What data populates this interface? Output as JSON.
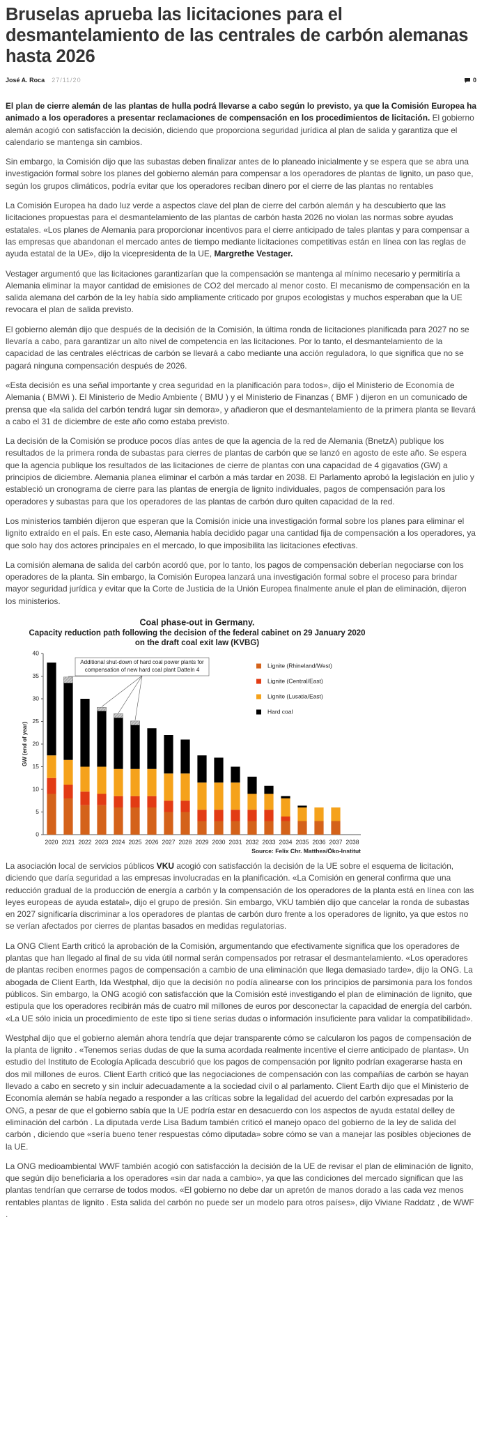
{
  "header": {
    "title": "Bruselas aprueba las licitaciones para el desmantelamiento de las centrales de carbón alemanas hasta 2026",
    "author": "José A. Roca",
    "date": "27/11/20",
    "comments": "0"
  },
  "article": {
    "paragraphs": [
      [
        {
          "text": "El plan de cierre alemán de las plantas de hulla podrá llevarse a cabo según lo previsto, ya que la Comisión Europea ha animado a los operadores a presentar reclamaciones de compensación en los procedimientos de licitación.",
          "bold": true
        },
        {
          "text": " El gobierno alemán acogió con satisfacción la decisión, diciendo que proporciona seguridad jurídica al plan de salida y garantiza que el calendario se mantenga sin cambios."
        }
      ],
      [
        {
          "text": "Sin embargo, la Comisión dijo que las subastas deben finalizar antes de lo planeado inicialmente y se espera que se abra una investigación formal sobre los planes del gobierno alemán para compensar a los operadores de plantas de lignito, un paso que, según los grupos climáticos, podría evitar que los operadores reciban dinero por el cierre de las plantas no rentables"
        }
      ],
      [
        {
          "text": "La Comisión Europea ha dado luz verde a aspectos clave del plan de cierre del carbón alemán y ha descubierto que las licitaciones propuestas para el desmantelamiento de las plantas de carbón hasta 2026 no violan las normas sobre ayudas estatales. «Los planes de Alemania para proporcionar incentivos para el cierre anticipado de tales plantas y para compensar a las empresas que abandonan el mercado antes de tiempo mediante licitaciones competitivas están en línea con las reglas de ayuda estatal de la UE», dijo la vicepresidenta de la UE, "
        },
        {
          "text": "Margrethe Vestager.",
          "bold": true
        }
      ],
      [
        {
          "text": "Vestager argumentó que las licitaciones garantizarían que la compensación se mantenga al mínimo necesario y permitiría a Alemania eliminar la mayor cantidad de emisiones de CO2 del mercado al menor costo. El mecanismo de compensación en la salida alemana del carbón de la ley había sido ampliamente criticado por grupos ecologistas y muchos esperaban que la UE revocara el plan de salida previsto."
        }
      ],
      [
        {
          "text": "El gobierno alemán dijo que después de la decisión de la Comisión, la última ronda de licitaciones planificada para 2027 no se llevaría a cabo, para garantizar un alto nivel de competencia en las licitaciones. Por lo tanto, el desmantelamiento de la capacidad de las centrales eléctricas de carbón se llevará a cabo mediante una acción reguladora, lo que significa que no se pagará ninguna compensación después de 2026."
        }
      ],
      [
        {
          "text": "«Esta decisión es una señal importante y crea seguridad en la planificación para todos», dijo el Ministerio de Economía de Alemania ( BMWi ). El Ministerio de Medio Ambiente ( BMU ) y el Ministerio de Finanzas ( BMF ) dijeron en un comunicado de prensa que «la salida del carbón tendrá lugar sin demora», y añadieron que el desmantelamiento de la primera planta se llevará a cabo el 31 de diciembre de este año como estaba previsto."
        }
      ],
      [
        {
          "text": "La decisión de la Comisión se produce pocos días antes de que la agencia de la red de Alemania (BnetzA) publique los resultados de la primera ronda de subastas para cierres de plantas de carbón que se lanzó en agosto de este año. Se espera que la agencia publique los resultados de las licitaciones de cierre de plantas con una capacidad de 4 gigavatios (GW) a principios de diciembre. Alemania planea eliminar el carbón a más tardar en 2038. El Parlamento aprobó la legislación en julio y estableció un cronograma de cierre para las plantas de energía de lignito individuales, pagos de compensación para los operadores y subastas para que los operadores de las plantas de carbón duro quiten capacidad de la red."
        }
      ],
      [
        {
          "text": "Los ministerios también dijeron que esperan que la Comisión inicie una investigación formal sobre los planes para eliminar el lignito extraído en el país. En este caso, Alemania había decidido pagar una cantidad fija de compensación a los operadores, ya que solo hay dos actores principales en el mercado, lo que imposibilita las licitaciones efectivas."
        }
      ],
      [
        {
          "text": "La comisión alemana de salida del carbón acordó que, por lo tanto, los pagos de compensación deberían negociarse con los operadores de la planta. Sin embargo, la Comisión Europea lanzará una investigación formal sobre el proceso para brindar mayor seguridad jurídica y evitar que la Corte de Justicia de la Unión Europea finalmente anule el plan de eliminación, dijeron los ministerios."
        }
      ],
      [
        {
          "text": "La asociación local de servicios públicos "
        },
        {
          "text": "VKU",
          "bold": true
        },
        {
          "text": " acogió con satisfacción la decisión de la UE sobre el esquema de licitación, diciendo que daría seguridad a las empresas involucradas en la planificación. «La Comisión en general confirma que una reducción gradual de la producción de energía a carbón y la compensación de los operadores de la planta está en línea con las leyes europeas de ayuda estatal», dijo el grupo de presión. Sin embargo, VKU también dijo que cancelar la ronda de subastas en 2027 significaría discriminar a los operadores de plantas de carbón duro frente a los operadores de lignito, ya que estos no se verían afectados por cierres de plantas basados en medidas regulatorias."
        }
      ],
      [
        {
          "text": "La ONG Client Earth criticó la aprobación de la Comisión, argumentando que efectivamente significa que los operadores de plantas que han llegado al final de su vida útil normal serán compensados por retrasar el desmantelamiento. «Los operadores de plantas reciben enormes pagos de compensación a cambio de una eliminación que llega demasiado tarde», dijo la ONG. La abogada de Client Earth, Ida Westphal, dijo que la decisión no podía alinearse con los principios de parsimonia para los fondos públicos. Sin embargo, la ONG acogió con satisfacción que la Comisión esté investigando el plan de eliminación de lignito, que estipula que los operadores recibirán más de cuatro mil millones de euros por desconectar la capacidad de energía del carbón. «La UE sólo inicia un procedimiento de este tipo si tiene serias dudas o información insuficiente para validar la compatibilidad»."
        }
      ],
      [
        {
          "text": "Westphal dijo que el gobierno alemán ahora tendría que dejar transparente cómo se calcularon los pagos de compensación de la planta de lignito . «Tenemos serias dudas de que la suma acordada realmente incentive el cierre anticipado de plantas». Un estudio del Instituto de Ecología Aplicada descubrió que los pagos de compensación por lignito podrían exagerarse hasta en dos mil millones de euros. Client Earth criticó que las negociaciones de compensación con las compañías de carbón se hayan llevado a cabo en secreto y sin incluir adecuadamente a la sociedad civil o al parlamento. Client Earth dijo que el Ministerio de Economía alemán se había negado a responder a las críticas sobre la legalidad del acuerdo del carbón expresadas por la ONG, a pesar de que el gobierno sabía que la UE podría estar en desacuerdo con los aspectos de ayuda estatal delley de eliminación del carbón . La diputada verde Lisa Badum también criticó el manejo opaco del gobierno de la ley de salida del carbón , diciendo que «sería bueno tener respuestas cómo diputada» sobre cómo se van a manejar las posibles objeciones de la UE."
        }
      ],
      [
        {
          "text": "La ONG medioambiental WWF también acogió con satisfacción la decisión de la UE de revisar el plan de eliminación de lignito, que según dijo beneficiaria a los operadores «sin dar nada a cambio», ya que las condiciones del mercado significan que las plantas tendrían que cerrarse de todos modos. «El gobierno no debe dar un apretón de manos dorado a las cada vez menos rentables plantas de lignito . Esta salida del carbón no puede ser un modelo para otros países», dijo Viviane Raddatz , de WWF ."
        }
      ]
    ]
  },
  "chart_data": {
    "type": "stacked-bar",
    "title": "Coal phase-out in Germany.",
    "subtitle": [
      "Capacity reduction path following the decision of the federal cabinet on 29 January 2020",
      "on the draft coal exit law (KVBG)"
    ],
    "ylabel": "GW (end of year)",
    "source": "Source: Felix Chr. Matthes/Öko-Institut",
    "categories": [
      "2020",
      "2021",
      "2022",
      "2023",
      "2024",
      "2025",
      "2026",
      "2027",
      "2028",
      "2029",
      "2030",
      "2031",
      "2032",
      "2033",
      "2034",
      "2035",
      "2036",
      "2037",
      "2038"
    ],
    "series": [
      {
        "name": "Lignite (Rhineland/West)",
        "color": "#d4621a",
        "values": [
          9,
          8,
          6.5,
          6.5,
          6,
          6,
          6,
          5,
          5,
          3,
          3,
          3,
          3,
          3,
          3,
          3,
          3,
          3,
          0
        ]
      },
      {
        "name": "Lignite (Central/East)",
        "color": "#e23b14",
        "values": [
          3.5,
          3,
          3,
          2.5,
          2.5,
          2.5,
          2.5,
          2.5,
          2.5,
          2.5,
          2.5,
          2.5,
          2.5,
          2.5,
          1,
          0,
          0,
          0,
          0
        ]
      },
      {
        "name": "Lignite (Lusatia/East)",
        "color": "#f5a21b",
        "values": [
          5,
          5.5,
          5.5,
          6,
          6,
          6,
          6,
          6,
          6,
          6,
          6,
          6,
          3.5,
          3.5,
          4,
          3,
          3,
          3,
          0
        ]
      },
      {
        "name": "Hard coal",
        "color": "#000000",
        "values": [
          20.5,
          17,
          15,
          12.3,
          11.3,
          9.7,
          9,
          8.5,
          7.5,
          6,
          5.5,
          3.5,
          3.8,
          1.8,
          0.5,
          0.4,
          0,
          0,
          0
        ]
      }
    ],
    "additional": {
      "label": [
        "Additional shut-down of hard coal power plants for",
        "compensation of new hard coal plant Datteln 4"
      ],
      "color": "#9a9a9a",
      "values": [
        null,
        1.3,
        null,
        0.8,
        0.9,
        0.9,
        null,
        null,
        null,
        null,
        null,
        null,
        null,
        null,
        null,
        null,
        null,
        null,
        null
      ]
    },
    "ylim": [
      0,
      40
    ],
    "yticks": [
      0,
      5,
      10,
      15,
      20,
      25,
      30,
      35,
      40
    ],
    "grid": false,
    "legend": "top-right"
  }
}
